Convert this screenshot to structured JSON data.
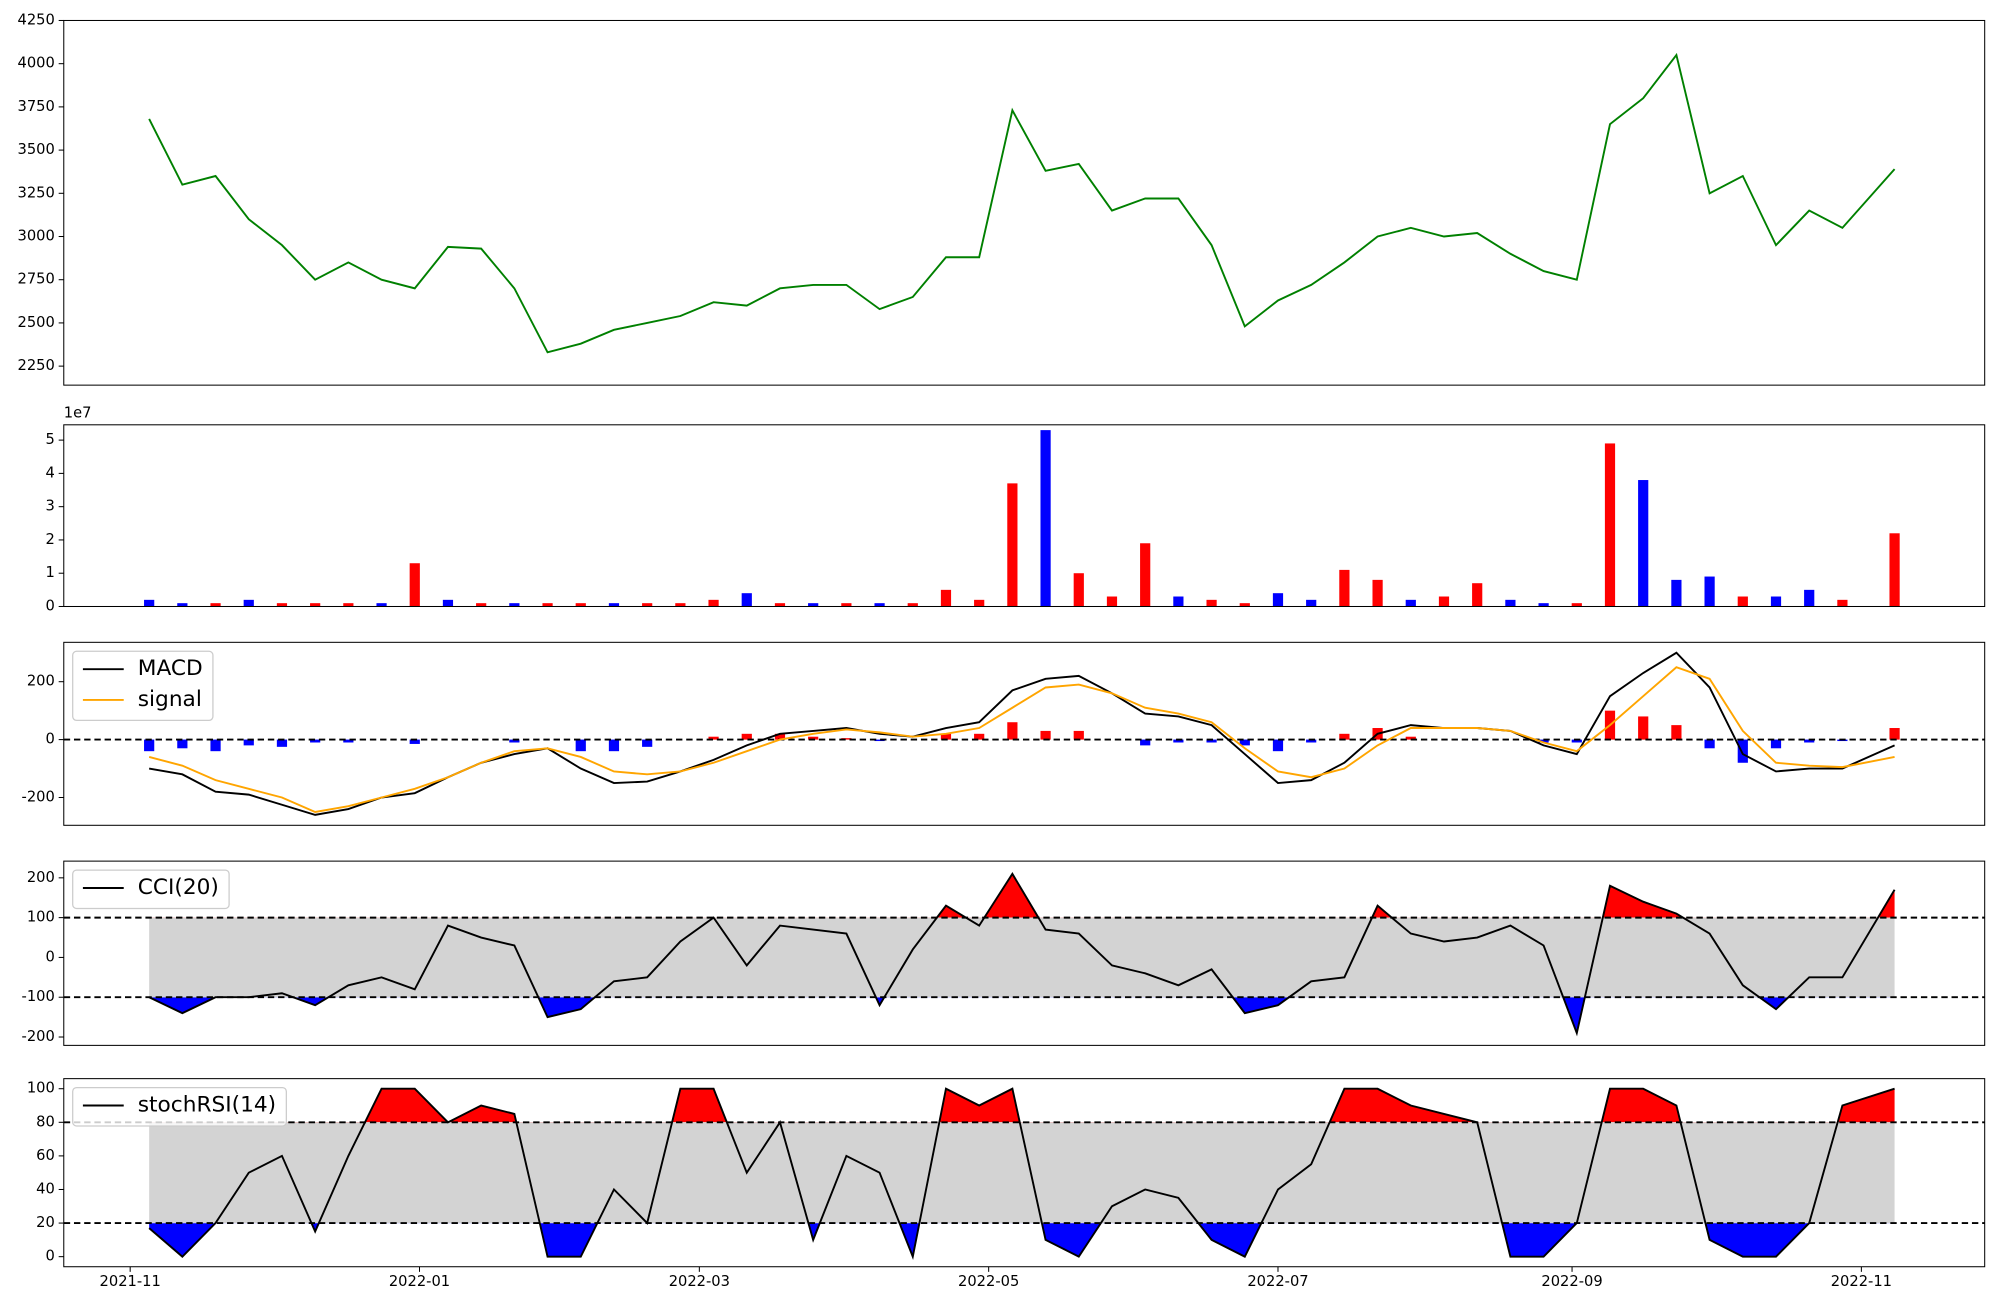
{
  "chart_data": [
    {
      "type": "line",
      "x": [
        18936,
        18943,
        18950,
        18957,
        18964,
        18971,
        18978,
        18985,
        18992,
        18999,
        19006,
        19013,
        19020,
        19027,
        19034,
        19041,
        19048,
        19055,
        19062,
        19069,
        19076,
        19083,
        19090,
        19097,
        19104,
        19111,
        19118,
        19125,
        19132,
        19139,
        19146,
        19153,
        19160,
        19167,
        19174,
        19181,
        19188,
        19195,
        19202,
        19209,
        19216,
        19223,
        19230,
        19237,
        19244,
        19251,
        19258,
        19265,
        19272,
        19279,
        19286,
        19293,
        19304
      ],
      "series": [
        {
          "color": "green",
          "values": [
            3680,
            3300,
            3350,
            3100,
            2950,
            2750,
            2850,
            2750,
            2700,
            2940,
            2930,
            2700,
            2330,
            2380,
            2460,
            2500,
            2540,
            2620,
            2600,
            2700,
            2720,
            2720,
            2580,
            2650,
            2880,
            2880,
            3730,
            3380,
            3420,
            3150,
            3220,
            3220,
            2950,
            2480,
            2630,
            2720,
            2850,
            3000,
            3050,
            3000,
            3020,
            2900,
            2800,
            2750,
            3650,
            3800,
            4050,
            3250,
            3350,
            2950,
            3150,
            3050,
            3390
          ]
        }
      ],
      "xlim": [
        18918,
        19323
      ],
      "ylim": [
        2140,
        4250
      ],
      "yticks": [
        2250,
        2500,
        2750,
        3000,
        3250,
        3500,
        3750,
        4000,
        4250
      ]
    },
    {
      "type": "bar",
      "offset_label": "1e7",
      "x": [
        18936,
        18943,
        18950,
        18957,
        18964,
        18971,
        18978,
        18985,
        18992,
        18999,
        19006,
        19013,
        19020,
        19027,
        19034,
        19041,
        19048,
        19055,
        19062,
        19069,
        19076,
        19083,
        19090,
        19097,
        19104,
        19111,
        19118,
        19125,
        19132,
        19139,
        19146,
        19153,
        19160,
        19167,
        19174,
        19181,
        19188,
        19195,
        19202,
        19209,
        19216,
        19223,
        19230,
        19237,
        19244,
        19251,
        19258,
        19265,
        19272,
        19279,
        19286,
        19293,
        19304
      ],
      "values": [
        0.2,
        0.1,
        0.1,
        0.2,
        0.1,
        0.1,
        0.1,
        0.1,
        1.3,
        0.2,
        0.1,
        0.1,
        0.1,
        0.1,
        0.1,
        0.1,
        0.1,
        0.2,
        0.4,
        0.1,
        0.1,
        0.1,
        0.1,
        0.1,
        0.5,
        0.2,
        3.7,
        5.3,
        1.0,
        0.3,
        1.9,
        0.3,
        0.2,
        0.1,
        0.4,
        0.2,
        1.1,
        0.8,
        0.2,
        0.3,
        0.7,
        0.2,
        0.1,
        0.1,
        4.9,
        3.8,
        0.8,
        0.9,
        0.3,
        0.3,
        0.5,
        0.2,
        2.2
      ],
      "colors": [
        "blue",
        "blue",
        "red",
        "blue",
        "red",
        "red",
        "red",
        "blue",
        "red",
        "blue",
        "red",
        "blue",
        "red",
        "red",
        "blue",
        "red",
        "red",
        "red",
        "blue",
        "red",
        "blue",
        "red",
        "blue",
        "red",
        "red",
        "red",
        "red",
        "blue",
        "red",
        "red",
        "red",
        "blue",
        "red",
        "red",
        "blue",
        "blue",
        "red",
        "red",
        "blue",
        "red",
        "red",
        "blue",
        "blue",
        "red",
        "red",
        "blue",
        "blue",
        "blue",
        "red",
        "blue",
        "blue",
        "red",
        "red"
      ],
      "xlim": [
        18918,
        19323
      ],
      "ylim": [
        0,
        5.46
      ],
      "yticks": [
        0,
        1,
        2,
        3,
        4,
        5
      ]
    },
    {
      "type": "line",
      "x": [
        18936,
        18943,
        18950,
        18957,
        18964,
        18971,
        18978,
        18985,
        18992,
        18999,
        19006,
        19013,
        19020,
        19027,
        19034,
        19041,
        19048,
        19055,
        19062,
        19069,
        19076,
        19083,
        19090,
        19097,
        19104,
        19111,
        19118,
        19125,
        19132,
        19139,
        19146,
        19153,
        19160,
        19167,
        19174,
        19181,
        19188,
        19195,
        19202,
        19209,
        19216,
        19223,
        19230,
        19237,
        19244,
        19251,
        19258,
        19265,
        19272,
        19279,
        19286,
        19293,
        19304
      ],
      "series": [
        {
          "name": "MACD",
          "color": "black",
          "values": [
            -100,
            -120,
            -180,
            -190,
            -225,
            -260,
            -240,
            -200,
            -185,
            -130,
            -80,
            -50,
            -30,
            -100,
            -150,
            -145,
            -110,
            -70,
            -20,
            20,
            30,
            40,
            20,
            10,
            40,
            60,
            170,
            210,
            220,
            160,
            90,
            80,
            50,
            -50,
            -150,
            -140,
            -80,
            20,
            50,
            40,
            40,
            30,
            -20,
            -50,
            150,
            230,
            300,
            180,
            -50,
            -110,
            -100,
            -100,
            -20
          ]
        },
        {
          "name": "signal",
          "color": "orange",
          "values": [
            -60,
            -90,
            -140,
            -170,
            -200,
            -250,
            -230,
            -200,
            -170,
            -130,
            -80,
            -40,
            -30,
            -60,
            -110,
            -120,
            -110,
            -80,
            -40,
            0,
            20,
            35,
            25,
            10,
            20,
            40,
            110,
            180,
            190,
            160,
            110,
            90,
            60,
            -30,
            -110,
            -130,
            -100,
            -20,
            40,
            40,
            40,
            30,
            -10,
            -40,
            50,
            150,
            250,
            210,
            30,
            -80,
            -90,
            -95,
            -60
          ]
        }
      ],
      "histogram": {
        "pos_color": "red",
        "neg_color": "blue",
        "values": [
          -40,
          -30,
          -40,
          -20,
          -25,
          -10,
          -10,
          0,
          -15,
          0,
          0,
          -10,
          0,
          -40,
          -40,
          -25,
          0,
          10,
          20,
          20,
          10,
          5,
          -5,
          0,
          20,
          20,
          60,
          30,
          30,
          0,
          -20,
          -10,
          -10,
          -20,
          -40,
          -10,
          20,
          40,
          10,
          0,
          0,
          0,
          -10,
          -10,
          100,
          80,
          50,
          -30,
          -80,
          -30,
          -10,
          -5,
          40
        ]
      },
      "hlines": [
        0
      ],
      "legend": "upper left",
      "xlim": [
        18918,
        19323
      ],
      "ylim": [
        -296,
        336
      ],
      "yticks": [
        -200,
        0,
        200
      ]
    },
    {
      "type": "line",
      "x": [
        18936,
        18943,
        18950,
        18957,
        18964,
        18971,
        18978,
        18985,
        18992,
        18999,
        19006,
        19013,
        19020,
        19027,
        19034,
        19041,
        19048,
        19055,
        19062,
        19069,
        19076,
        19083,
        19090,
        19097,
        19104,
        19111,
        19118,
        19125,
        19132,
        19139,
        19146,
        19153,
        19160,
        19167,
        19174,
        19181,
        19188,
        19195,
        19202,
        19209,
        19216,
        19223,
        19230,
        19237,
        19244,
        19251,
        19258,
        19265,
        19272,
        19279,
        19286,
        19293,
        19304
      ],
      "series": [
        {
          "name": "CCI(20)",
          "color": "black",
          "values": [
            -100,
            -140,
            -100,
            -100,
            -90,
            -120,
            -70,
            -50,
            -80,
            80,
            50,
            30,
            -150,
            -130,
            -60,
            -50,
            40,
            100,
            -20,
            80,
            70,
            60,
            -120,
            20,
            130,
            80,
            210,
            70,
            60,
            -20,
            -40,
            -70,
            -30,
            -140,
            -120,
            -60,
            -50,
            130,
            60,
            40,
            50,
            80,
            30,
            -190,
            180,
            140,
            110,
            60,
            -70,
            -130,
            -50,
            -50,
            170
          ]
        }
      ],
      "hlines": [
        100,
        -100
      ],
      "band_color": "lightgray",
      "over_color": "red",
      "under_color": "blue",
      "legend": "upper left",
      "xlim": [
        18918,
        19323
      ],
      "ylim": [
        -221,
        242
      ],
      "yticks": [
        -200,
        -100,
        0,
        100,
        200
      ]
    },
    {
      "type": "line",
      "x": [
        18936,
        18943,
        18950,
        18957,
        18964,
        18971,
        18978,
        18985,
        18992,
        18999,
        19006,
        19013,
        19020,
        19027,
        19034,
        19041,
        19048,
        19055,
        19062,
        19069,
        19076,
        19083,
        19090,
        19097,
        19104,
        19111,
        19118,
        19125,
        19132,
        19139,
        19146,
        19153,
        19160,
        19167,
        19174,
        19181,
        19188,
        19195,
        19202,
        19209,
        19216,
        19223,
        19230,
        19237,
        19244,
        19251,
        19258,
        19265,
        19272,
        19279,
        19286,
        19293,
        19304
      ],
      "series": [
        {
          "name": "stochRSI(14)",
          "color": "black",
          "values": [
            17,
            0,
            20,
            50,
            60,
            15,
            60,
            100,
            100,
            80,
            90,
            85,
            0,
            0,
            40,
            20,
            100,
            100,
            50,
            80,
            10,
            60,
            50,
            0,
            100,
            90,
            100,
            10,
            0,
            30,
            40,
            35,
            10,
            0,
            40,
            55,
            100,
            100,
            90,
            85,
            80,
            0,
            0,
            20,
            100,
            100,
            90,
            10,
            0,
            0,
            20,
            90,
            100
          ]
        }
      ],
      "hlines": [
        80,
        20
      ],
      "band_color": "lightgray",
      "over_color": "red",
      "under_color": "blue",
      "legend": "upper left",
      "xlim": [
        18918,
        19323
      ],
      "ylim": [
        -6,
        106
      ],
      "yticks": [
        0,
        20,
        40,
        60,
        80,
        100
      ],
      "xticks": [
        {
          "value": 18932,
          "label": "2021-11"
        },
        {
          "value": 18993,
          "label": "2022-01"
        },
        {
          "value": 19052,
          "label": "2022-03"
        },
        {
          "value": 19113,
          "label": "2022-05"
        },
        {
          "value": 19174,
          "label": "2022-07"
        },
        {
          "value": 19236,
          "label": "2022-09"
        },
        {
          "value": 19297,
          "label": "2022-11"
        }
      ]
    }
  ]
}
